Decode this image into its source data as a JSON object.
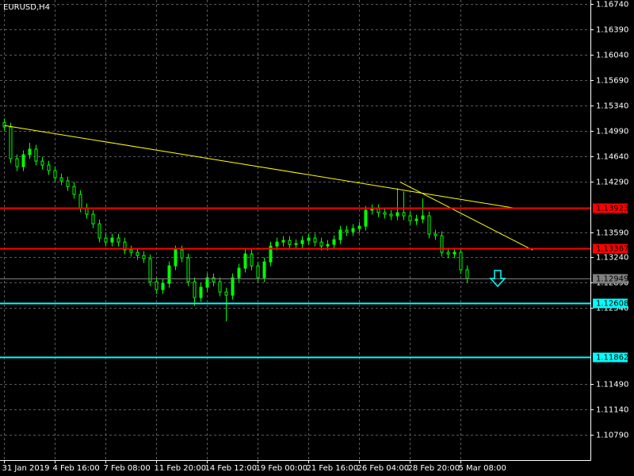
{
  "chart_data": {
    "type": "candlestick",
    "title": "EURUSD,H4",
    "categories": [
      "31 Jan 2019",
      null,
      null,
      null,
      null,
      null,
      null,
      null,
      "4 Feb 16:00",
      null,
      null,
      null,
      null,
      null,
      null,
      null,
      "7 Feb 08:00",
      null,
      null,
      null,
      null,
      null,
      null,
      null,
      "11 Feb 20:00",
      null,
      null,
      null,
      null,
      null,
      null,
      null,
      "14 Feb 12:00",
      null,
      null,
      null,
      null,
      null,
      null,
      null,
      "19 Feb 00:00",
      null,
      null,
      null,
      null,
      null,
      null,
      null,
      "21 Feb 16:00",
      null,
      null,
      null,
      null,
      null,
      null,
      null,
      "26 Feb 04:00",
      null,
      null,
      null,
      null,
      null,
      null,
      null,
      "28 Feb 20:00",
      null,
      null,
      null,
      null,
      null,
      null,
      null,
      "5 Mar 08:00",
      null
    ],
    "open": [
      1.151,
      1.15041,
      1.14603,
      1.14493,
      1.14658,
      1.14735,
      1.1457,
      1.14515,
      1.14439,
      1.1434,
      1.14296,
      1.14219,
      1.1411,
      1.13924,
      1.13836,
      1.13704,
      1.13507,
      1.13452,
      1.13507,
      1.13452,
      1.13343,
      1.1331,
      1.13266,
      1.13222,
      1.12904,
      1.12795,
      1.12882,
      1.13123,
      1.13343,
      1.13233,
      1.12904,
      1.12685,
      1.12828,
      1.12959,
      1.12904,
      1.12762,
      1.12718,
      1.12959,
      1.13091,
      1.13288,
      1.13123,
      1.12959,
      1.13178,
      1.13397,
      1.13452,
      1.13474,
      1.13419,
      1.1343,
      1.13474,
      1.13507,
      1.13452,
      1.13397,
      1.13419,
      1.13485,
      1.13617,
      1.13595,
      1.13639,
      1.13671,
      1.13891,
      1.13912,
      1.13858,
      1.13836,
      1.13814,
      1.13858,
      1.13814,
      1.13748,
      1.1377,
      1.13814,
      1.13562,
      1.1354,
      1.1331,
      1.13288,
      1.1331,
      1.13069
    ],
    "high": [
      1.1516,
      1.15101,
      1.14663,
      1.14718,
      1.14822,
      1.14795,
      1.1463,
      1.14575,
      1.14499,
      1.144,
      1.14356,
      1.14279,
      1.1417,
      1.13984,
      1.13896,
      1.13764,
      1.13567,
      1.13567,
      1.13567,
      1.13512,
      1.13403,
      1.1337,
      1.13326,
      1.13282,
      1.12964,
      1.12942,
      1.13183,
      1.13403,
      1.13403,
      1.13293,
      1.12964,
      1.12888,
      1.13019,
      1.13019,
      1.12964,
      1.12822,
      1.13019,
      1.13151,
      1.13348,
      1.13348,
      1.13183,
      1.13238,
      1.13457,
      1.13512,
      1.13534,
      1.13534,
      1.1349,
      1.13534,
      1.13567,
      1.13567,
      1.13512,
      1.13479,
      1.13545,
      1.13677,
      1.13677,
      1.13699,
      1.13731,
      1.13951,
      1.13972,
      1.13972,
      1.13918,
      1.13896,
      1.14197,
      1.1415,
      1.13874,
      1.1383,
      1.14055,
      1.13874,
      1.13622,
      1.136,
      1.1337,
      1.1337,
      1.1337,
      1.13129
    ],
    "low": [
      1.14981,
      1.14543,
      1.14433,
      1.14433,
      1.14598,
      1.1451,
      1.14455,
      1.14379,
      1.1428,
      1.14236,
      1.14159,
      1.1405,
      1.13864,
      1.13776,
      1.13644,
      1.13447,
      1.13392,
      1.13392,
      1.13392,
      1.13283,
      1.1325,
      1.13206,
      1.13162,
      1.12844,
      1.12735,
      1.12735,
      1.12822,
      1.13063,
      1.13173,
      1.12844,
      1.1257,
      1.12625,
      1.12768,
      1.12844,
      1.12702,
      1.12356,
      1.12658,
      1.12899,
      1.13031,
      1.13063,
      1.12899,
      1.12899,
      1.13118,
      1.13337,
      1.13392,
      1.13359,
      1.13359,
      1.1337,
      1.13414,
      1.13392,
      1.13337,
      1.13337,
      1.13359,
      1.13425,
      1.13535,
      1.13535,
      1.13579,
      1.13611,
      1.13831,
      1.13798,
      1.13776,
      1.13754,
      1.13754,
      1.13754,
      1.13688,
      1.13688,
      1.1371,
      1.13502,
      1.1348,
      1.1325,
      1.13228,
      1.13228,
      1.13009,
      1.12889
    ],
    "close": [
      1.15041,
      1.14603,
      1.14493,
      1.14658,
      1.14735,
      1.1457,
      1.14515,
      1.14439,
      1.1434,
      1.14296,
      1.14219,
      1.1411,
      1.13924,
      1.13836,
      1.13704,
      1.13507,
      1.13452,
      1.13507,
      1.13452,
      1.13343,
      1.1331,
      1.13266,
      1.13222,
      1.12904,
      1.12795,
      1.12882,
      1.13123,
      1.13343,
      1.13233,
      1.12904,
      1.12685,
      1.12828,
      1.12959,
      1.12904,
      1.12762,
      1.12718,
      1.12959,
      1.13091,
      1.13288,
      1.13123,
      1.12959,
      1.13178,
      1.13397,
      1.13452,
      1.13474,
      1.13419,
      1.1343,
      1.13474,
      1.13507,
      1.13452,
      1.13397,
      1.13419,
      1.13485,
      1.13617,
      1.13595,
      1.13639,
      1.13671,
      1.13891,
      1.13912,
      1.13858,
      1.13836,
      1.13814,
      1.13858,
      1.13814,
      1.13748,
      1.1377,
      1.13814,
      1.13562,
      1.1354,
      1.1331,
      1.13288,
      1.1331,
      1.13069,
      1.12949
    ],
    "color": "#00ff00",
    "ylim": [
      1.1044,
      1.16795
    ],
    "yticks": [
      {
        "value": 1.1674,
        "label": "1.16740"
      },
      {
        "value": 1.1639,
        "label": "1.16390"
      },
      {
        "value": 1.1604,
        "label": "1.16040"
      },
      {
        "value": 1.1569,
        "label": "1.15690"
      },
      {
        "value": 1.1534,
        "label": "1.15340"
      },
      {
        "value": 1.1499,
        "label": "1.14990"
      },
      {
        "value": 1.1464,
        "label": "1.14640"
      },
      {
        "value": 1.1429,
        "label": "1.14290"
      },
      {
        "value": 1.1359,
        "label": "1.13590"
      },
      {
        "value": 1.1324,
        "label": "1.13240"
      },
      {
        "value": 1.1289,
        "label": "1.12890"
      },
      {
        "value": 1.1254,
        "label": "1.12540"
      },
      {
        "value": 1.1149,
        "label": "1.11490"
      },
      {
        "value": 1.1114,
        "label": "1.11140"
      },
      {
        "value": 1.1079,
        "label": "1.10790"
      }
    ],
    "grid": true,
    "hlines": [
      {
        "value": 1.13923,
        "color": "#ff0000"
      },
      {
        "value": 1.13367,
        "color": "#ff0000"
      },
      {
        "value": 1.12608,
        "color": "#00ffff"
      },
      {
        "value": 1.11862,
        "color": "#00ffff"
      }
    ],
    "current_price": {
      "value": 1.12949,
      "color": "#808080"
    },
    "trendlines": [
      {
        "x": [
          0,
          80.6
        ],
        "y": [
          1.15063,
          1.1392
        ],
        "color": "#ffff00"
      },
      {
        "x": [
          62.5,
          83.4
        ],
        "y": [
          1.1428,
          1.1334
        ],
        "color": "#ffff00"
      }
    ]
  }
}
